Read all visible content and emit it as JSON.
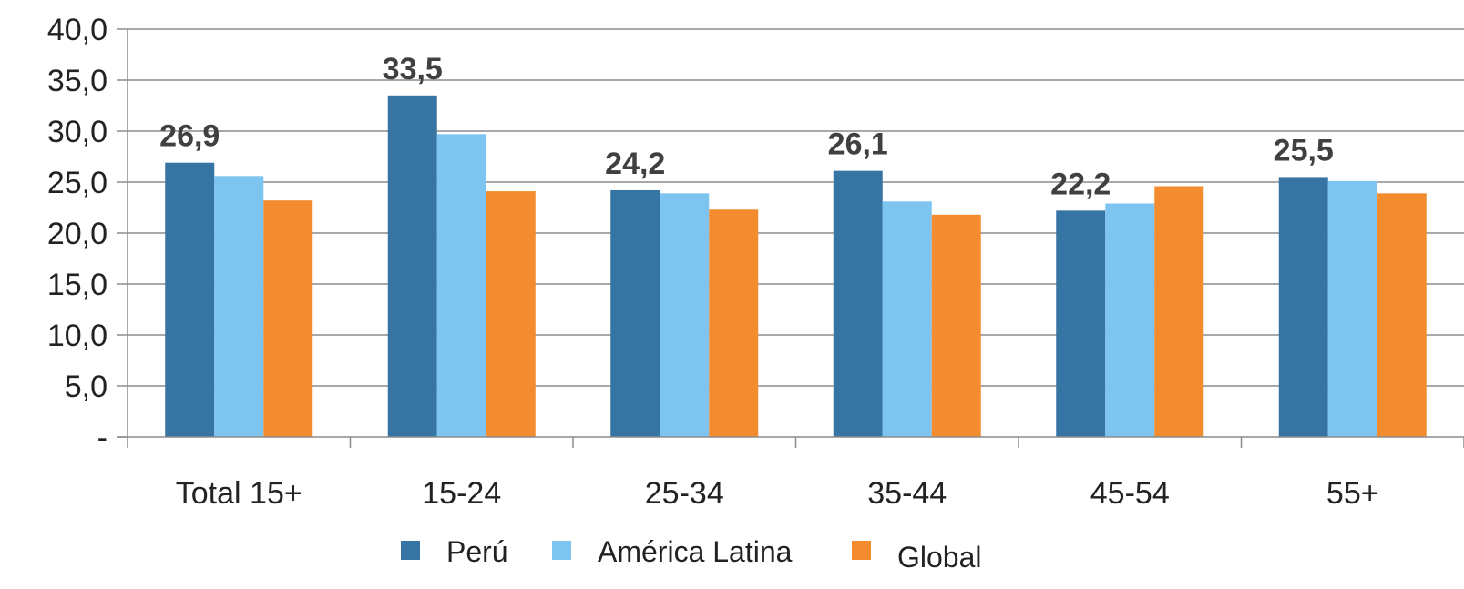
{
  "chart_data": {
    "type": "bar",
    "categories": [
      "Total 15+",
      "15-24",
      "25-34",
      "35-44",
      "45-54",
      "55+"
    ],
    "series": [
      {
        "name": "Perú",
        "color": "#3674A3",
        "values": [
          26.9,
          33.5,
          24.2,
          26.1,
          22.2,
          25.5
        ],
        "data_labels": [
          "26,9",
          "33,5",
          "24,2",
          "26,1",
          "22,2",
          "25,5"
        ]
      },
      {
        "name": "América Latina",
        "color": "#7DC5F0",
        "values": [
          25.6,
          29.7,
          23.9,
          23.1,
          22.9,
          25.1
        ]
      },
      {
        "name": "Global",
        "color": "#F28C2E",
        "values": [
          23.2,
          24.1,
          22.3,
          21.8,
          24.6,
          23.9
        ]
      }
    ],
    "yticks": [
      {
        "value": 0,
        "label": "-"
      },
      {
        "value": 5,
        "label": "5,0"
      },
      {
        "value": 10,
        "label": "10,0"
      },
      {
        "value": 15,
        "label": "15,0"
      },
      {
        "value": 20,
        "label": "20,0"
      },
      {
        "value": 25,
        "label": "25,0"
      },
      {
        "value": 30,
        "label": "30,0"
      },
      {
        "value": 35,
        "label": "35,0"
      },
      {
        "value": 40,
        "label": "40,0"
      }
    ],
    "ylim": [
      0,
      40
    ],
    "grid": true,
    "gridline_color": "#8C8C8C",
    "legend": "bottom",
    "title": "",
    "xlabel": "",
    "ylabel": ""
  }
}
